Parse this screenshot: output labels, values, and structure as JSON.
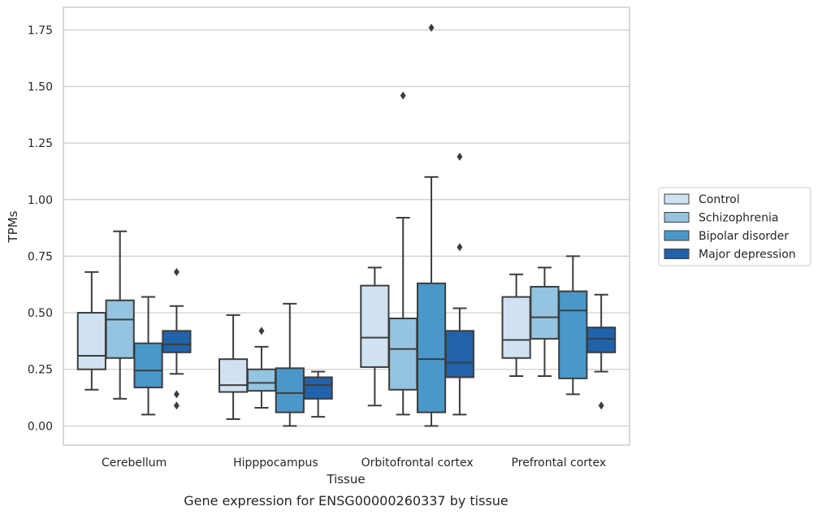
{
  "chart_data": {
    "type": "boxplot",
    "title": "Gene expression for ENSG00000260337 by tissue",
    "xlabel": "Tissue",
    "ylabel": "TPMs",
    "ylim": [
      -0.085,
      1.85
    ],
    "yticks": [
      0.0,
      0.25,
      0.5,
      0.75,
      1.0,
      1.25,
      1.5,
      1.75
    ],
    "ytick_labels": [
      "0.00",
      "0.25",
      "0.50",
      "0.75",
      "1.00",
      "1.25",
      "1.50",
      "1.75"
    ],
    "grid": true,
    "legend_position": "right",
    "categories": [
      "Cerebellum",
      "Hipppocampus",
      "Orbitofrontal cortex",
      "Prefrontal cortex"
    ],
    "series": [
      {
        "name": "Control",
        "color": "#d0e1f2",
        "boxes": [
          {
            "whislo": 0.16,
            "q1": 0.25,
            "med": 0.31,
            "q3": 0.5,
            "whishi": 0.68,
            "fliers": []
          },
          {
            "whislo": 0.03,
            "q1": 0.15,
            "med": 0.18,
            "q3": 0.295,
            "whishi": 0.49,
            "fliers": []
          },
          {
            "whislo": 0.09,
            "q1": 0.26,
            "med": 0.39,
            "q3": 0.62,
            "whishi": 0.7,
            "fliers": []
          },
          {
            "whislo": 0.22,
            "q1": 0.3,
            "med": 0.38,
            "q3": 0.57,
            "whishi": 0.67,
            "fliers": []
          }
        ]
      },
      {
        "name": "Schizophrenia",
        "color": "#94c4df",
        "boxes": [
          {
            "whislo": 0.12,
            "q1": 0.3,
            "med": 0.47,
            "q3": 0.555,
            "whishi": 0.86,
            "fliers": []
          },
          {
            "whislo": 0.08,
            "q1": 0.155,
            "med": 0.19,
            "q3": 0.25,
            "whishi": 0.35,
            "fliers": [
              0.42
            ]
          },
          {
            "whislo": 0.05,
            "q1": 0.16,
            "med": 0.34,
            "q3": 0.475,
            "whishi": 0.92,
            "fliers": [
              1.46
            ]
          },
          {
            "whislo": 0.22,
            "q1": 0.385,
            "med": 0.48,
            "q3": 0.615,
            "whishi": 0.7,
            "fliers": []
          }
        ]
      },
      {
        "name": "Bipolar disorder",
        "color": "#4a98c9",
        "boxes": [
          {
            "whislo": 0.05,
            "q1": 0.17,
            "med": 0.245,
            "q3": 0.365,
            "whishi": 0.57,
            "fliers": []
          },
          {
            "whislo": 0.0,
            "q1": 0.06,
            "med": 0.145,
            "q3": 0.255,
            "whishi": 0.54,
            "fliers": []
          },
          {
            "whislo": 0.0,
            "q1": 0.06,
            "med": 0.295,
            "q3": 0.63,
            "whishi": 1.1,
            "fliers": [
              1.76
            ]
          },
          {
            "whislo": 0.14,
            "q1": 0.21,
            "med": 0.51,
            "q3": 0.595,
            "whishi": 0.75,
            "fliers": []
          }
        ]
      },
      {
        "name": "Major depression",
        "color": "#2163aa",
        "boxes": [
          {
            "whislo": 0.23,
            "q1": 0.325,
            "med": 0.36,
            "q3": 0.42,
            "whishi": 0.53,
            "fliers": [
              0.68,
              0.14,
              0.09
            ]
          },
          {
            "whislo": 0.04,
            "q1": 0.12,
            "med": 0.18,
            "q3": 0.215,
            "whishi": 0.24,
            "fliers": []
          },
          {
            "whislo": 0.05,
            "q1": 0.215,
            "med": 0.28,
            "q3": 0.42,
            "whishi": 0.52,
            "fliers": [
              1.19,
              0.79
            ]
          },
          {
            "whislo": 0.24,
            "q1": 0.325,
            "med": 0.385,
            "q3": 0.435,
            "whishi": 0.58,
            "fliers": [
              0.09
            ]
          }
        ]
      }
    ]
  }
}
